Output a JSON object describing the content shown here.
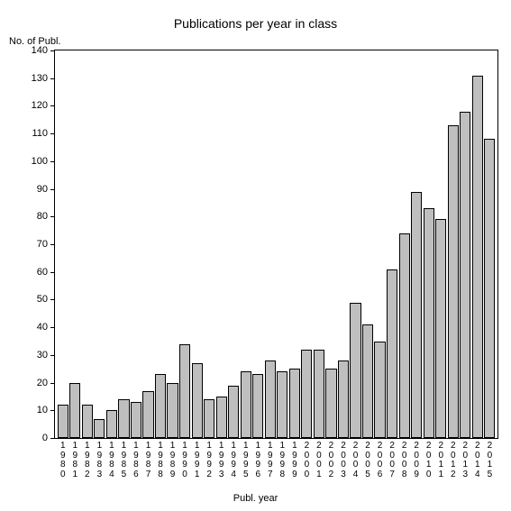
{
  "chart": {
    "type": "bar",
    "title": "Publications per year in class",
    "title_fontsize": 14,
    "y_axis_label": "No. of Publ.",
    "x_axis_label": "Publ. year",
    "label_fontsize": 11,
    "tick_fontsize": 11,
    "x_tick_fontsize": 10,
    "background_color": "#ffffff",
    "bar_color": "#bfbfbf",
    "bar_border_color": "#000000",
    "axis_color": "#000000",
    "text_color": "#000000",
    "ylim": [
      0,
      140
    ],
    "ytick_step": 10,
    "bar_width_ratio": 0.9,
    "categories": [
      "1980",
      "1981",
      "1982",
      "1983",
      "1984",
      "1985",
      "1986",
      "1987",
      "1988",
      "1989",
      "1990",
      "1991",
      "1992",
      "1993",
      "1994",
      "1995",
      "1996",
      "1997",
      "1998",
      "1999",
      "2000",
      "2001",
      "2002",
      "2003",
      "2004",
      "2005",
      "2006",
      "2007",
      "2008",
      "2009",
      "2010",
      "2011",
      "2012",
      "2013",
      "2014",
      "2015"
    ],
    "values": [
      12,
      20,
      12,
      7,
      10,
      14,
      13,
      17,
      23,
      20,
      34,
      27,
      14,
      15,
      19,
      24,
      23,
      28,
      24,
      25,
      32,
      32,
      25,
      28,
      49,
      41,
      35,
      61,
      74,
      89,
      83,
      79,
      113,
      118,
      131,
      108
    ]
  }
}
